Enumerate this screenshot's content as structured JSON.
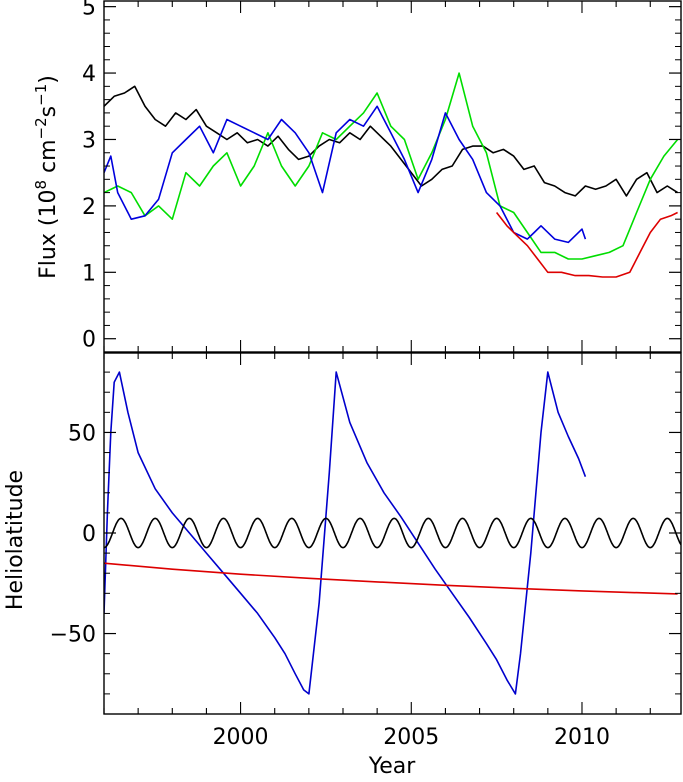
{
  "chart_data": [
    {
      "type": "line",
      "panel": "top",
      "xlim": [
        1996.0,
        2012.9
      ],
      "ylim": [
        -0.2,
        5.1
      ],
      "ylabel": "Flux (10^8 cm^-2 s^-1)",
      "ylabel_parts": {
        "base": "Flux (10",
        "exp1": "8",
        "mid": " cm",
        "exp2": "−2",
        "mid2": "s",
        "exp3": "−1",
        "end": ")"
      },
      "yticks": [
        0,
        1,
        2,
        3,
        4,
        5
      ],
      "ytick_labels": [
        "0",
        "1",
        "2",
        "3",
        "4",
        "5"
      ],
      "xticks": [
        2000,
        2005,
        2010
      ],
      "series": [
        {
          "color": "#000000",
          "x": [
            1996.0,
            1996.3,
            1996.6,
            1996.9,
            1997.2,
            1997.5,
            1997.8,
            1998.1,
            1998.4,
            1998.7,
            1999.0,
            1999.3,
            1999.6,
            1999.9,
            2000.2,
            2000.5,
            2000.8,
            2001.1,
            2001.4,
            2001.7,
            2002.0,
            2002.3,
            2002.6,
            2002.9,
            2003.2,
            2003.5,
            2003.8,
            2004.1,
            2004.4,
            2004.7,
            2005.0,
            2005.3,
            2005.6,
            2005.9,
            2006.2,
            2006.5,
            2006.8,
            2007.1,
            2007.4,
            2007.7,
            2008.0,
            2008.3,
            2008.6,
            2008.9,
            2009.2,
            2009.5,
            2009.8,
            2010.1,
            2010.4,
            2010.7,
            2011.0,
            2011.3,
            2011.6,
            2011.9,
            2012.2,
            2012.5,
            2012.8
          ],
          "y": [
            3.5,
            3.65,
            3.7,
            3.8,
            3.5,
            3.3,
            3.2,
            3.4,
            3.3,
            3.45,
            3.2,
            3.1,
            3.0,
            3.1,
            2.95,
            3.0,
            2.9,
            3.05,
            2.85,
            2.7,
            2.75,
            2.9,
            3.0,
            2.95,
            3.1,
            3.0,
            3.2,
            3.05,
            2.9,
            2.7,
            2.5,
            2.3,
            2.4,
            2.55,
            2.6,
            2.85,
            2.9,
            2.9,
            2.8,
            2.85,
            2.75,
            2.55,
            2.6,
            2.35,
            2.3,
            2.2,
            2.15,
            2.3,
            2.25,
            2.3,
            2.4,
            2.15,
            2.4,
            2.5,
            2.2,
            2.3,
            2.2
          ]
        },
        {
          "color": "#00dd00",
          "x": [
            1996.0,
            1996.4,
            1996.8,
            1997.2,
            1997.6,
            1998.0,
            1998.4,
            1998.8,
            1999.2,
            1999.6,
            2000.0,
            2000.4,
            2000.8,
            2001.2,
            2001.6,
            2002.0,
            2002.4,
            2002.8,
            2003.2,
            2003.6,
            2004.0,
            2004.4,
            2004.8,
            2005.2,
            2005.6,
            2006.0,
            2006.4,
            2006.8,
            2007.2,
            2007.6,
            2008.0,
            2008.4,
            2008.8,
            2009.2,
            2009.6,
            2010.0,
            2010.4,
            2010.8,
            2011.2,
            2011.6,
            2012.0,
            2012.4,
            2012.8
          ],
          "y": [
            2.2,
            2.3,
            2.2,
            1.85,
            2.0,
            1.8,
            2.5,
            2.3,
            2.6,
            2.8,
            2.3,
            2.6,
            3.1,
            2.6,
            2.3,
            2.6,
            3.1,
            3.0,
            3.2,
            3.4,
            3.7,
            3.2,
            3.0,
            2.4,
            2.8,
            3.3,
            4.0,
            3.2,
            2.8,
            2.0,
            1.9,
            1.6,
            1.3,
            1.3,
            1.2,
            1.2,
            1.25,
            1.3,
            1.4,
            1.9,
            2.4,
            2.75,
            3.0
          ]
        },
        {
          "color": "#0000dd",
          "x": [
            1996.0,
            1996.2,
            1996.4,
            1996.8,
            1997.2,
            1997.6,
            1998.0,
            1998.4,
            1998.8,
            1999.2,
            1999.6,
            2000.0,
            2000.4,
            2000.8,
            2001.2,
            2001.6,
            2002.0,
            2002.4,
            2002.8,
            2003.2,
            2003.6,
            2004.0,
            2004.4,
            2004.8,
            2005.2,
            2005.6,
            2006.0,
            2006.4,
            2006.8,
            2007.2,
            2007.6,
            2008.0,
            2008.4,
            2008.6,
            2008.8,
            2009.2,
            2009.6,
            2010.0,
            2010.1
          ],
          "y": [
            2.5,
            2.75,
            2.2,
            1.8,
            1.85,
            2.1,
            2.8,
            3.0,
            3.2,
            2.8,
            3.3,
            3.2,
            3.1,
            3.0,
            3.3,
            3.1,
            2.8,
            2.2,
            3.1,
            3.3,
            3.2,
            3.5,
            3.1,
            2.7,
            2.2,
            2.7,
            3.4,
            3.0,
            2.7,
            2.2,
            2.0,
            1.6,
            1.5,
            1.6,
            1.7,
            1.5,
            1.45,
            1.65,
            1.5
          ]
        },
        {
          "color": "#dd0000",
          "x": [
            2007.5,
            2007.8,
            2008.1,
            2008.4,
            2008.7,
            2009.0,
            2009.4,
            2009.8,
            2010.2,
            2010.6,
            2011.0,
            2011.4,
            2011.7,
            2012.0,
            2012.3,
            2012.6,
            2012.8
          ],
          "y": [
            1.9,
            1.7,
            1.55,
            1.4,
            1.2,
            1.0,
            1.0,
            0.95,
            0.95,
            0.93,
            0.93,
            1.0,
            1.3,
            1.6,
            1.8,
            1.85,
            1.9
          ]
        }
      ]
    },
    {
      "type": "line",
      "panel": "bottom",
      "xlim": [
        1996.0,
        2012.9
      ],
      "ylim": [
        -90,
        90
      ],
      "ylabel": "Heliolatitude",
      "xlabel": "Year",
      "yticks": [
        -50,
        0,
        50
      ],
      "ytick_labels": [
        "−50",
        "0",
        "50"
      ],
      "xticks": [
        2000,
        2005,
        2010
      ],
      "xtick_labels": [
        "2000",
        "2005",
        "2010"
      ],
      "series": [
        {
          "color": "#0000cc",
          "x": [
            1996.0,
            1996.1,
            1996.2,
            1996.3,
            1996.45,
            1996.7,
            1997.0,
            1997.5,
            1998.0,
            1998.5,
            1999.0,
            1999.5,
            2000.0,
            2000.5,
            2001.0,
            2001.3,
            2001.6,
            2001.85,
            2002.0,
            2002.3,
            2002.6,
            2002.8,
            2003.2,
            2003.7,
            2004.2,
            2004.7,
            2005.2,
            2005.7,
            2006.2,
            2006.7,
            2007.2,
            2007.5,
            2007.8,
            2008.05,
            2008.2,
            2008.5,
            2008.8,
            2009.0,
            2009.3,
            2009.6,
            2009.9,
            2010.1
          ],
          "y": [
            -40,
            10,
            50,
            75,
            80,
            60,
            40,
            22,
            10,
            0,
            -10,
            -20,
            -30,
            -40,
            -52,
            -60,
            -70,
            -78,
            -80,
            -35,
            30,
            80,
            55,
            35,
            20,
            8,
            -5,
            -18,
            -30,
            -42,
            -55,
            -63,
            -73,
            -80,
            -60,
            -10,
            50,
            80,
            60,
            48,
            37,
            28
          ]
        },
        {
          "color": "#000000",
          "function": "earth-latitude-oscillation",
          "amplitude": 7.25,
          "period_years": 1.0
        },
        {
          "color": "#dd0000",
          "x": [
            1996.0,
            1998.0,
            2000.0,
            2002.0,
            2004.0,
            2006.0,
            2008.0,
            2010.0,
            2012.0,
            2012.8
          ],
          "y": [
            -15,
            -18,
            -20.5,
            -22.5,
            -24.3,
            -26,
            -27.5,
            -28.8,
            -29.9,
            -30.3
          ]
        }
      ]
    }
  ]
}
